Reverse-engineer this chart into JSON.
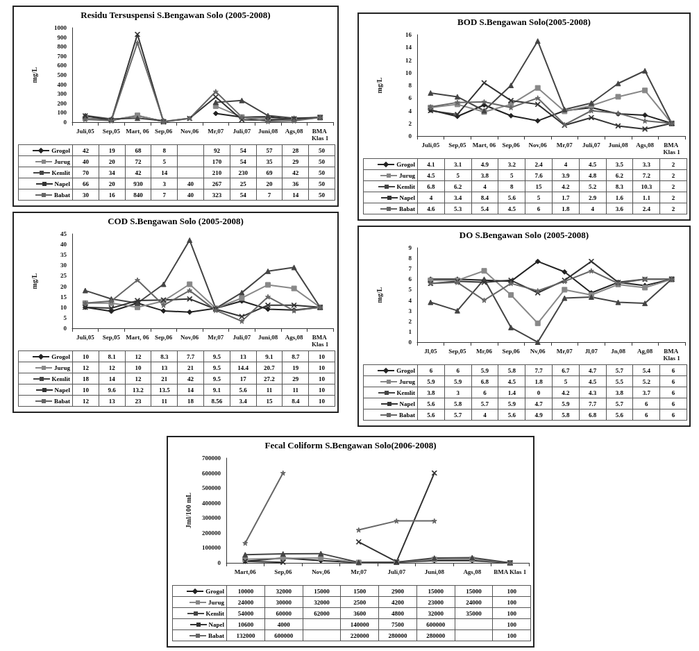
{
  "chart_data": [
    {
      "type": "line",
      "title": "Residu Tersuspensi S.Bengawan Solo (2005-2008)",
      "ylabel": "mg/L",
      "categories": [
        "Juli,05",
        "Sep,05",
        "Mart, 06",
        "Sep,06",
        "Nov,06",
        "Mr,07",
        "Juli,07",
        "Juni,08",
        "Ags,08",
        "BMA Klas 1"
      ],
      "ylim": [
        0,
        1000
      ],
      "yticks": [
        0,
        100,
        200,
        300,
        400,
        500,
        600,
        700,
        800,
        900,
        1000
      ],
      "legend": "bottom",
      "data_labels": true,
      "series": [
        {
          "name": "Grogol",
          "color": "#222222",
          "marker": "diamond",
          "values": [
            42,
            19,
            68,
            8,
            null,
            92,
            54,
            57,
            28,
            50
          ]
        },
        {
          "name": "Jurug",
          "color": "#888888",
          "marker": "square",
          "values": [
            40,
            20,
            72,
            5,
            null,
            170,
            54,
            35,
            29,
            50
          ]
        },
        {
          "name": "Kemlit",
          "color": "#444444",
          "marker": "triangle",
          "values": [
            70,
            34,
            42,
            14,
            null,
            210,
            230,
            69,
            42,
            50
          ]
        },
        {
          "name": "Napel",
          "color": "#333333",
          "marker": "cross",
          "values": [
            66,
            20,
            930,
            3,
            40,
            267,
            25,
            20,
            36,
            50
          ]
        },
        {
          "name": "Babat",
          "color": "#666666",
          "marker": "star",
          "values": [
            30,
            16,
            840,
            7,
            40,
            323,
            54,
            7,
            14,
            50
          ]
        }
      ]
    },
    {
      "type": "line",
      "title": "BOD S.Bengawan Solo(2005-2008)",
      "ylabel": "mg/L",
      "categories": [
        "Juli,05",
        "Sep,05",
        "Mart, 06",
        "Sep,06",
        "Nov,06",
        "Mr,07",
        "Juli,07",
        "Juni,08",
        "Ags,08",
        "BMA Klas 1"
      ],
      "ylim": [
        0,
        16
      ],
      "yticks": [
        0,
        2,
        4,
        6,
        8,
        10,
        12,
        14,
        16
      ],
      "legend": "bottom",
      "data_labels": true,
      "series": [
        {
          "name": "Grogol",
          "color": "#222222",
          "marker": "diamond",
          "values": [
            4.1,
            3.1,
            4.9,
            3.2,
            2.4,
            4,
            4.5,
            3.5,
            3.3,
            2
          ]
        },
        {
          "name": "Jurug",
          "color": "#888888",
          "marker": "square",
          "values": [
            4.5,
            5,
            3.8,
            5,
            7.6,
            3.9,
            4.8,
            6.2,
            7.2,
            2
          ]
        },
        {
          "name": "Kemlit",
          "color": "#444444",
          "marker": "triangle",
          "values": [
            6.8,
            6.2,
            4,
            8,
            15,
            4.2,
            5.2,
            8.3,
            10.3,
            2
          ]
        },
        {
          "name": "Napel",
          "color": "#333333",
          "marker": "cross",
          "values": [
            4,
            3.4,
            8.4,
            5.6,
            5,
            1.7,
            2.9,
            1.6,
            1.1,
            2
          ]
        },
        {
          "name": "Babat",
          "color": "#666666",
          "marker": "star",
          "values": [
            4.6,
            5.3,
            5.4,
            4.5,
            6,
            1.8,
            4,
            3.6,
            2.4,
            2
          ]
        }
      ]
    },
    {
      "type": "line",
      "title": "COD S.Bengawan Solo (2005-2008)",
      "ylabel": "mg/L",
      "categories": [
        "Juli,05",
        "Sep,05",
        "Mart, 06",
        "Sep,06",
        "Nov,06",
        "Mr,07",
        "Juli,07",
        "Juni,08",
        "Ags,08",
        "BMA Klas 1"
      ],
      "ylim": [
        0,
        45
      ],
      "yticks": [
        0,
        5,
        10,
        15,
        20,
        25,
        30,
        35,
        40,
        45
      ],
      "legend": "bottom",
      "data_labels": true,
      "series": [
        {
          "name": "Grogol",
          "color": "#222222",
          "marker": "diamond",
          "values": [
            10,
            8.1,
            12,
            8.3,
            7.7,
            9.5,
            13,
            9.1,
            8.7,
            10
          ]
        },
        {
          "name": "Jurug",
          "color": "#888888",
          "marker": "square",
          "values": [
            12,
            12,
            10,
            13,
            21,
            9.5,
            14.4,
            20.7,
            19,
            10
          ]
        },
        {
          "name": "Kemlit",
          "color": "#444444",
          "marker": "triangle",
          "values": [
            18,
            14,
            12,
            21,
            42,
            9.5,
            17,
            27.2,
            29,
            10
          ]
        },
        {
          "name": "Napel",
          "color": "#333333",
          "marker": "cross",
          "values": [
            10,
            9.6,
            13.2,
            13.5,
            14,
            9.1,
            5.6,
            11,
            11,
            10
          ]
        },
        {
          "name": "Babat",
          "color": "#666666",
          "marker": "star",
          "values": [
            12,
            13,
            23,
            11,
            18,
            8.56,
            3.4,
            15,
            8.4,
            10
          ]
        }
      ]
    },
    {
      "type": "line",
      "title": "DO S.Bengawan Solo (2005-2008)",
      "ylabel": "mg/L",
      "categories": [
        "Jl,05",
        "Sep,05",
        "Mr,06",
        "Sep,06",
        "Nv,06",
        "Mr,07",
        "Jl,07",
        "Jn,08",
        "Ag,08",
        "BMA Klas 1"
      ],
      "ylim": [
        0,
        9
      ],
      "yticks": [
        0,
        1,
        2,
        3,
        4,
        5,
        6,
        7,
        8,
        9
      ],
      "legend": "bottom",
      "data_labels": true,
      "series": [
        {
          "name": "Grogol",
          "color": "#222222",
          "marker": "diamond",
          "values": [
            6,
            6,
            5.9,
            5.8,
            7.7,
            6.7,
            4.7,
            5.7,
            5.4,
            6
          ]
        },
        {
          "name": "Jurug",
          "color": "#888888",
          "marker": "square",
          "values": [
            5.9,
            5.9,
            6.8,
            4.5,
            1.8,
            5,
            4.5,
            5.5,
            5.2,
            6
          ]
        },
        {
          "name": "Kemlit",
          "color": "#444444",
          "marker": "triangle",
          "values": [
            3.8,
            3,
            6,
            1.4,
            0,
            4.2,
            4.3,
            3.8,
            3.7,
            6
          ]
        },
        {
          "name": "Napel",
          "color": "#333333",
          "marker": "cross",
          "values": [
            5.6,
            5.8,
            5.7,
            5.9,
            4.7,
            5.9,
            7.7,
            5.7,
            6,
            6
          ]
        },
        {
          "name": "Babat",
          "color": "#666666",
          "marker": "star",
          "values": [
            5.6,
            5.7,
            4,
            5.6,
            4.9,
            5.8,
            6.8,
            5.6,
            6,
            6
          ]
        }
      ]
    },
    {
      "type": "line",
      "title": "Fecal Coliform S.Bengawan Solo(2006-2008)",
      "ylabel": "Jml/100 mL",
      "categories": [
        "Mart,06",
        "Sep,06",
        "Nov,06",
        "Mr,07",
        "Juli,07",
        "Juni,08",
        "Ags,08",
        "BMA Klas 1"
      ],
      "ylim": [
        0,
        700000
      ],
      "yticks": [
        0,
        100000,
        200000,
        300000,
        400000,
        500000,
        600000,
        700000
      ],
      "legend": "bottom",
      "data_labels": true,
      "series": [
        {
          "name": "Grogol",
          "color": "#222222",
          "marker": "diamond",
          "values": [
            10000,
            32000,
            15000,
            1500,
            2900,
            15000,
            15000,
            100
          ]
        },
        {
          "name": "Jurug",
          "color": "#888888",
          "marker": "square",
          "values": [
            24000,
            30000,
            32000,
            2500,
            4200,
            23000,
            24000,
            100
          ]
        },
        {
          "name": "Kemlit",
          "color": "#444444",
          "marker": "triangle",
          "values": [
            54000,
            60000,
            62000,
            3600,
            4800,
            32000,
            35000,
            100
          ]
        },
        {
          "name": "Napel",
          "color": "#333333",
          "marker": "cross",
          "values": [
            10600,
            4000,
            null,
            140000,
            7500,
            600000,
            null,
            100
          ]
        },
        {
          "name": "Babat",
          "color": "#666666",
          "marker": "star",
          "values": [
            132000,
            600000,
            null,
            220000,
            280000,
            280000,
            null,
            100
          ]
        }
      ]
    }
  ]
}
